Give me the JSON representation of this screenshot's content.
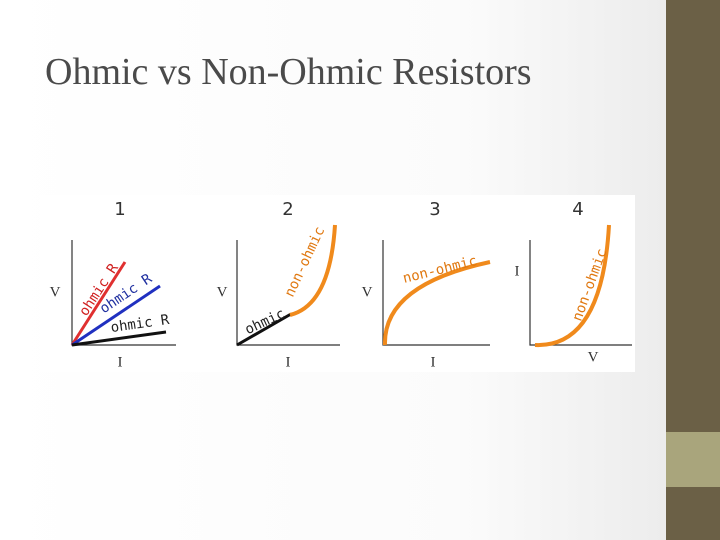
{
  "title": "Ohmic vs Non-Ohmic Resistors",
  "panels": [
    {
      "number": "1",
      "y_label": "V",
      "x_label": "I",
      "curve_labels": [
        "ohmic R",
        "ohmic R",
        "ohmic R"
      ]
    },
    {
      "number": "2",
      "y_label": "V",
      "x_label": "I",
      "curve_labels": [
        "ohmic",
        "non-ohmic"
      ]
    },
    {
      "number": "3",
      "y_label": "V",
      "x_label": "I",
      "curve_labels": [
        "non-ohmic"
      ]
    },
    {
      "number": "4",
      "y_label": "I",
      "x_label": "V",
      "curve_labels": [
        "non-ohmic"
      ]
    }
  ]
}
